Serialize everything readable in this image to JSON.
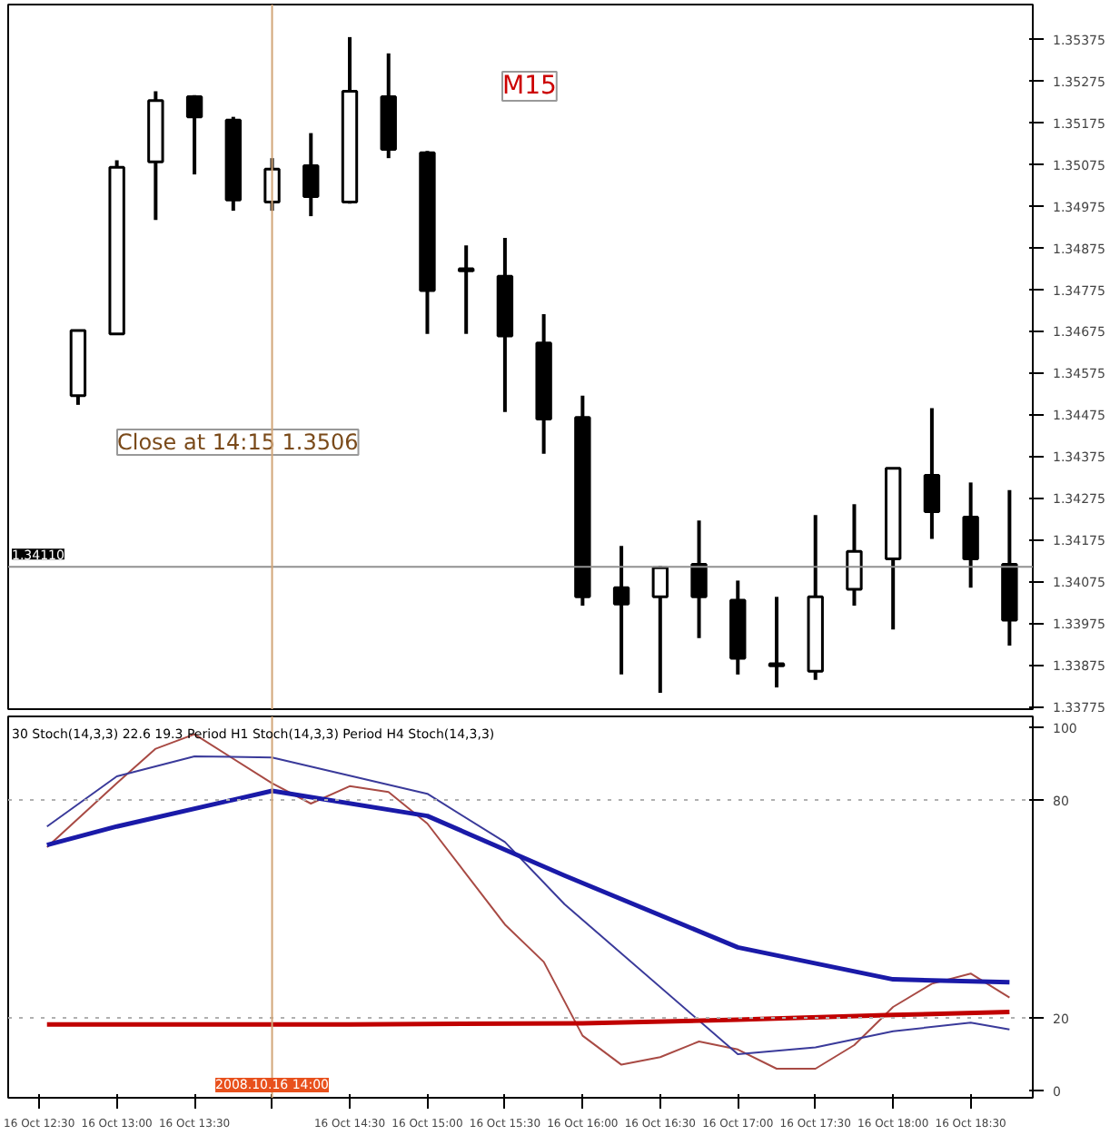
{
  "chart_data": [
    {
      "type": "candlestick",
      "x": [
        "2008-10-16T12:45",
        "2008-10-16T13:00",
        "2008-10-16T13:15",
        "2008-10-16T13:30",
        "2008-10-16T13:45",
        "2008-10-16T14:00",
        "2008-10-16T14:15",
        "2008-10-16T14:30",
        "2008-10-16T14:45",
        "2008-10-16T15:00",
        "2008-10-16T15:15",
        "2008-10-16T15:30",
        "2008-10-16T15:45",
        "2008-10-16T16:00",
        "2008-10-16T16:15",
        "2008-10-16T16:30",
        "2008-10-16T16:45",
        "2008-10-16T17:00",
        "2008-10-16T17:15",
        "2008-10-16T17:30",
        "2008-10-16T17:45",
        "2008-10-16T18:00",
        "2008-10-16T18:15",
        "2008-10-16T18:30",
        "2008-10-16T18:45"
      ],
      "ohlc": [
        [
          1.3452,
          1.34676,
          1.34498,
          1.34676
        ],
        [
          1.34668,
          1.35084,
          1.34668,
          1.35067
        ],
        [
          1.3508,
          1.35249,
          1.34941,
          1.35227
        ],
        [
          1.35236,
          1.3524,
          1.3505,
          1.35188
        ],
        [
          1.3518,
          1.35188,
          1.34963,
          1.34989
        ],
        [
          1.34984,
          1.35089,
          1.34963,
          1.35063
        ],
        [
          1.35071,
          1.35149,
          1.3495,
          1.34997
        ],
        [
          1.34984,
          1.35379,
          1.3498,
          1.35249
        ],
        [
          1.35236,
          1.3534,
          1.35089,
          1.3511
        ],
        [
          1.35102,
          1.35106,
          1.34668,
          1.34772
        ],
        [
          1.34824,
          1.3488,
          1.34668,
          1.34819
        ],
        [
          1.34806,
          1.34898,
          1.34481,
          1.34663
        ],
        [
          1.34646,
          1.34715,
          1.34381,
          1.34464
        ],
        [
          1.34468,
          1.3452,
          1.34017,
          1.34038
        ],
        [
          1.3406,
          1.3416,
          1.33852,
          1.34021
        ],
        [
          1.34038,
          1.34112,
          1.33808,
          1.34108
        ],
        [
          1.34116,
          1.34221,
          1.33939,
          1.34038
        ],
        [
          1.3403,
          1.34077,
          1.33852,
          1.33891
        ],
        [
          1.33878,
          1.34038,
          1.33821,
          1.33873
        ],
        [
          1.3386,
          1.34234,
          1.33839,
          1.34038
        ],
        [
          1.34056,
          1.3426,
          1.34017,
          1.34147
        ],
        [
          1.34129,
          1.34346,
          1.3396,
          1.34346
        ],
        [
          1.34329,
          1.3449,
          1.34177,
          1.34242
        ],
        [
          1.34229,
          1.34312,
          1.3406,
          1.34129
        ],
        [
          1.34116,
          1.34294,
          1.33921,
          1.33982
        ]
      ],
      "color": "#000000",
      "xlim": [
        "2008-10-16T12:18",
        "2008-10-16T18:54"
      ],
      "ylim": [
        1.33769,
        1.35457
      ],
      "yticks": [
        1.35375,
        1.35275,
        1.35175,
        1.35075,
        1.34975,
        1.34875,
        1.34775,
        1.34675,
        1.34575,
        1.34475,
        1.34375,
        1.34275,
        1.34175,
        1.34075,
        1.33975,
        1.33875,
        1.33775
      ],
      "tick_labels": "y",
      "grid": false,
      "ref_lines": [
        {
          "axis": "y",
          "value": 1.3411,
          "label": "1.34110",
          "color": "#909090"
        },
        {
          "axis": "x",
          "value": "2008-10-16T14:00",
          "color": "#d2a679"
        }
      ],
      "annotations": [
        "M15",
        "Close at 14:15 1.3506"
      ]
    },
    {
      "type": "line",
      "xlim": [
        "2008-10-16T12:18",
        "2008-10-16T18:54"
      ],
      "ylim": [
        -2,
        103
      ],
      "yticks": [
        0,
        20,
        80,
        100
      ],
      "xticks": [
        {
          "value": "2008-10-16T12:30",
          "label": "16 Oct 12:30"
        },
        {
          "value": "2008-10-16T13:00",
          "label": "16 Oct 13:00"
        },
        {
          "value": "2008-10-16T13:30",
          "label": "16 Oct 13:30"
        },
        {
          "value": "2008-10-16T14:00",
          "label": null
        },
        {
          "value": "2008-10-16T14:30",
          "label": "16 Oct 14:30"
        },
        {
          "value": "2008-10-16T15:00",
          "label": "16 Oct 15:00"
        },
        {
          "value": "2008-10-16T15:30",
          "label": "16 Oct 15:30"
        },
        {
          "value": "2008-10-16T16:00",
          "label": "16 Oct 16:00"
        },
        {
          "value": "2008-10-16T16:30",
          "label": "16 Oct 16:30"
        },
        {
          "value": "2008-10-16T17:00",
          "label": "16 Oct 17:00"
        },
        {
          "value": "2008-10-16T17:30",
          "label": "16 Oct 17:30"
        },
        {
          "value": "2008-10-16T18:00",
          "label": "16 Oct 18:00"
        },
        {
          "value": "2008-10-16T18:30",
          "label": "16 Oct 18:30"
        }
      ],
      "grid": false,
      "marker": "none",
      "line_style": "solid",
      "series": [
        {
          "color": "#a84a44",
          "x": [
            "2008-10-16T12:33",
            "2008-10-16T13:00",
            "2008-10-16T13:15",
            "2008-10-16T13:30",
            "2008-10-16T14:00",
            "2008-10-16T14:15",
            "2008-10-16T14:30",
            "2008-10-16T14:45",
            "2008-10-16T15:00",
            "2008-10-16T15:30",
            "2008-10-16T15:45",
            "2008-10-16T16:00",
            "2008-10-16T16:15",
            "2008-10-16T16:30",
            "2008-10-16T16:45",
            "2008-10-16T17:00",
            "2008-10-16T17:15",
            "2008-10-16T17:30",
            "2008-10-16T17:45",
            "2008-10-16T18:00",
            "2008-10-16T18:15",
            "2008-10-16T18:30",
            "2008-10-16T18:45"
          ],
          "values": [
            67,
            84.6,
            94.1,
            98.1,
            84.6,
            79,
            83.8,
            82.2,
            73.5,
            45.7,
            35.4,
            15.1,
            7.1,
            9.2,
            13.5,
            11.3,
            6.0,
            6.0,
            12.5,
            23,
            29.4,
            32.2,
            25.6
          ]
        },
        {
          "color": "#3a3a9a",
          "x": [
            "2008-10-16T12:33",
            "2008-10-16T13:00",
            "2008-10-16T13:30",
            "2008-10-16T14:00",
            "2008-10-16T15:00",
            "2008-10-16T15:30",
            "2008-10-16T15:53",
            "2008-10-16T17:00",
            "2008-10-16T17:30",
            "2008-10-16T18:00",
            "2008-10-16T18:30",
            "2008-10-16T18:45"
          ],
          "values": [
            72.7,
            86.5,
            92,
            91.7,
            81.7,
            68.4,
            51.3,
            10,
            11.9,
            16.3,
            18.7,
            16.8
          ]
        },
        {
          "color": "#1a1aa8",
          "x": [
            "2008-10-16T12:33",
            "2008-10-16T13:00",
            "2008-10-16T14:00",
            "2008-10-16T15:00",
            "2008-10-16T15:53",
            "2008-10-16T17:00",
            "2008-10-16T18:00",
            "2008-10-16T18:45"
          ],
          "values": [
            67.6,
            72.7,
            82.5,
            75.6,
            59.2,
            39.4,
            30.6,
            29.8
          ]
        },
        {
          "color": "#c00000",
          "x": [
            "2008-10-16T12:33",
            "2008-10-16T14:30",
            "2008-10-16T16:00",
            "2008-10-16T17:00",
            "2008-10-16T18:00",
            "2008-10-16T18:45"
          ],
          "values": [
            18.2,
            18.2,
            18.5,
            19.5,
            20.8,
            21.6
          ]
        }
      ],
      "ref_lines": [
        {
          "axis": "y",
          "value": 20,
          "color": "#b0b0b0",
          "line_style": "dotted"
        },
        {
          "axis": "y",
          "value": 80,
          "color": "#b0b0b0",
          "line_style": "dotted"
        },
        {
          "axis": "x",
          "value": "2008-10-16T14:00",
          "color": "#d2a679",
          "label": "2008.10.16 14:00"
        }
      ],
      "annotations": [
        "30 Stoch(14,3,3) 22.6 19.3  Period H1 Stoch(14,3,3)  Period H4 Stoch(14,3,3)"
      ]
    }
  ]
}
